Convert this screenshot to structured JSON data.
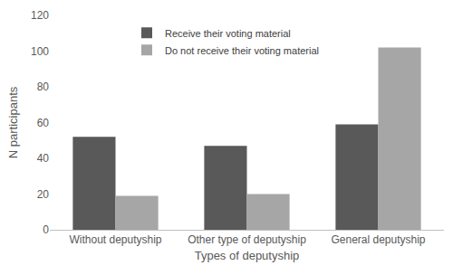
{
  "chart_data": {
    "type": "bar",
    "x_label": "Types of deputyship",
    "y_label": "N participants",
    "categories": [
      "Without deputyship",
      "Other type of deputyship",
      "General deputyship"
    ],
    "series": [
      {
        "name": "Receive their voting material",
        "color": "#595959",
        "values": [
          52,
          47,
          59
        ]
      },
      {
        "name": "Do not receive their voting material",
        "color": "#a6a6a6",
        "values": [
          19,
          20,
          102
        ]
      }
    ],
    "ylim": [
      0,
      120
    ],
    "yticks": [
      0,
      20,
      40,
      60,
      80,
      100,
      120
    ],
    "grid": false,
    "legend": "top"
  }
}
